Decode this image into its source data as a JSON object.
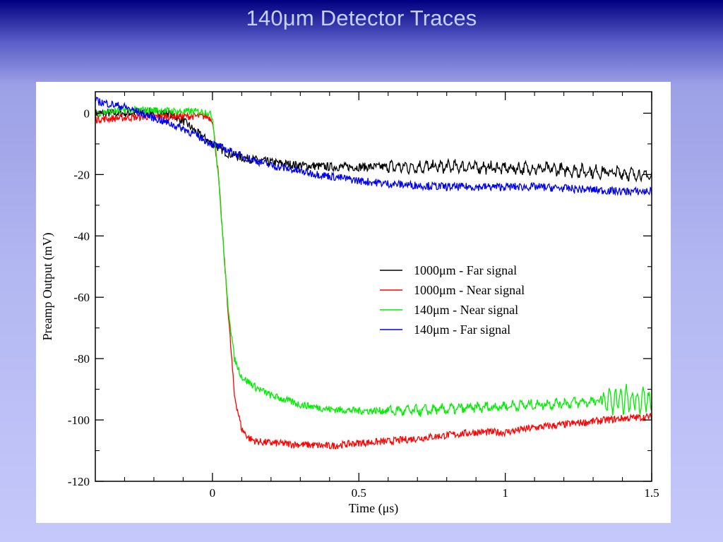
{
  "slide": {
    "title": "140μm Detector Traces",
    "background_top": "#000080",
    "background_bottom": "#c4c8fa"
  },
  "chart_data": {
    "type": "line",
    "title": "",
    "xlabel": "Time (μs)",
    "ylabel": "Preamp Output (mV)",
    "xlim": [
      -0.4,
      1.5
    ],
    "ylim": [
      -120,
      7
    ],
    "x_ticks": [
      0,
      0.5,
      1,
      1.5
    ],
    "x_tick_labels": [
      "0",
      "0.5",
      "1",
      "1.5"
    ],
    "y_ticks": [
      0,
      -20,
      -40,
      -60,
      -80,
      -100,
      -120
    ],
    "y_tick_labels": [
      "0",
      "-20",
      "-40",
      "-60",
      "-80",
      "-100",
      "-120"
    ],
    "grid": false,
    "legend_position": "center-right",
    "series": [
      {
        "name": "1000μm - Far signal",
        "color": "#000000",
        "x": [
          -0.4,
          -0.3,
          -0.2,
          -0.15,
          -0.1,
          -0.05,
          0,
          0.05,
          0.1,
          0.2,
          0.3,
          0.4,
          0.5,
          0.6,
          0.7,
          0.8,
          0.9,
          1.0,
          1.1,
          1.2,
          1.3,
          1.4,
          1.5
        ],
        "y": [
          0,
          0,
          0.5,
          0,
          -2.5,
          -6.5,
          -10,
          -13,
          -14.5,
          -16,
          -17,
          -17.5,
          -17.5,
          -17.5,
          -17.5,
          -17.5,
          -17.5,
          -18,
          -18,
          -18.5,
          -19,
          -19.5,
          -20.5
        ]
      },
      {
        "name": "1000μm - Near signal",
        "color": "#ff0000",
        "x": [
          -0.4,
          -0.3,
          -0.2,
          -0.1,
          -0.02,
          0,
          0.02,
          0.05,
          0.075,
          0.1,
          0.125,
          0.15,
          0.2,
          0.3,
          0.4,
          0.5,
          0.6,
          0.7,
          0.8,
          0.9,
          1.0,
          1.1,
          1.2,
          1.3,
          1.4,
          1.5
        ],
        "y": [
          -2,
          -1.5,
          -1,
          -1,
          -1,
          -2,
          -20,
          -60,
          -92,
          -103,
          -106,
          -107,
          -107.5,
          -108,
          -108.5,
          -107.5,
          -107,
          -106,
          -105,
          -104,
          -104,
          -102.5,
          -101.5,
          -100.5,
          -99.5,
          -99
        ]
      },
      {
        "name": "140μm - Near signal",
        "color": "#00ee00",
        "x": [
          -0.4,
          -0.3,
          -0.2,
          -0.1,
          -0.02,
          0,
          0.02,
          0.05,
          0.075,
          0.1,
          0.15,
          0.2,
          0.3,
          0.4,
          0.5,
          0.6,
          0.7,
          0.8,
          0.9,
          1.0,
          1.1,
          1.2,
          1.3,
          1.4,
          1.5
        ],
        "y": [
          0,
          1,
          1,
          0.5,
          0.5,
          -1,
          -20,
          -60,
          -80,
          -86,
          -89.5,
          -92,
          -95,
          -96.5,
          -97,
          -97,
          -97,
          -96.5,
          -96,
          -95.5,
          -95,
          -94.5,
          -94,
          -93.5,
          -93.5
        ]
      },
      {
        "name": "140μm - Far signal",
        "color": "#0000ee",
        "x": [
          -0.4,
          -0.3,
          -0.2,
          -0.1,
          0,
          0.1,
          0.2,
          0.3,
          0.4,
          0.5,
          0.6,
          0.7,
          0.8,
          0.9,
          1.0,
          1.1,
          1.2,
          1.3,
          1.4,
          1.5
        ],
        "y": [
          4,
          2,
          -1.5,
          -5,
          -10,
          -14,
          -17,
          -19,
          -20.5,
          -22,
          -23,
          -23.5,
          -24,
          -24,
          -24,
          -24,
          -24.5,
          -25,
          -25.5,
          -25.5
        ]
      }
    ]
  }
}
